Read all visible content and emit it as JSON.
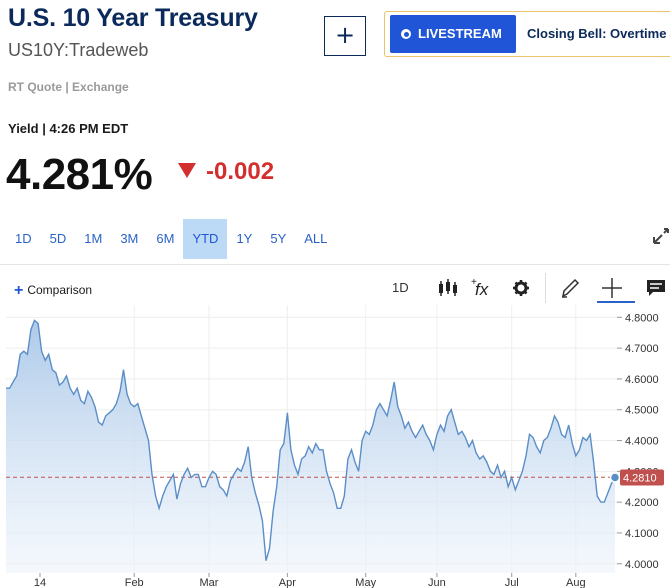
{
  "header": {
    "title": "U.S. 10 Year Treasury",
    "symbol": "US10Y:Tradeweb",
    "add_label": "+",
    "livestream_label": "LIVESTREAM",
    "livestream_show": "Closing Bell: Overtime",
    "quote_source": "RT Quote | Exchange"
  },
  "quote": {
    "yield_time": "Yield | 4:26 PM EDT",
    "price": "4.281%",
    "change": "-0.002",
    "change_color": "#d32f2f"
  },
  "ranges": [
    "1D",
    "5D",
    "1M",
    "3M",
    "6M",
    "YTD",
    "1Y",
    "5Y",
    "ALL"
  ],
  "active_range": "YTD",
  "toolbar": {
    "comparison_label": "Comparison",
    "interval_label": "1D"
  },
  "colors": {
    "accent": "#1f55d6",
    "line": "#5b8ec7",
    "fill": "#c9dcef",
    "ref_line": "#c0504d"
  },
  "chart_data": {
    "type": "area",
    "x_labels": [
      "14",
      "Feb",
      "Mar",
      "Apr",
      "May",
      "Jun",
      "Jul",
      "Aug"
    ],
    "y_ticks": [
      "4.8000",
      "4.7000",
      "4.6000",
      "4.5000",
      "4.4000",
      "4.3000",
      "4.2000",
      "4.1000",
      "4.0000"
    ],
    "ylim": [
      3.97,
      4.84
    ],
    "ref_value": 4.281,
    "current_label": "4.2810",
    "series": [
      {
        "values": [
          4.57,
          4.57,
          4.59,
          4.61,
          4.68,
          4.69,
          4.68,
          4.76,
          4.79,
          4.78,
          4.69,
          4.66,
          4.68,
          4.63,
          4.62,
          4.58,
          4.59,
          4.61,
          4.57,
          4.55,
          4.57,
          4.53,
          4.52,
          4.56,
          4.54,
          4.51,
          4.46,
          4.45,
          4.48,
          4.49,
          4.5,
          4.52,
          4.56,
          4.63,
          4.55,
          4.52,
          4.51,
          4.52,
          4.48,
          4.44,
          4.4,
          4.29,
          4.22,
          4.18,
          4.22,
          4.25,
          4.27,
          4.29,
          4.21,
          4.26,
          4.29,
          4.31,
          4.28,
          4.29,
          4.29,
          4.25,
          4.25,
          4.28,
          4.3,
          4.29,
          4.25,
          4.24,
          4.22,
          4.27,
          4.29,
          4.31,
          4.3,
          4.33,
          4.38,
          4.28,
          4.23,
          4.19,
          4.14,
          4.01,
          4.05,
          4.17,
          4.25,
          4.37,
          4.39,
          4.49,
          4.37,
          4.32,
          4.29,
          4.34,
          4.35,
          4.38,
          4.36,
          4.39,
          4.37,
          4.37,
          4.3,
          4.26,
          4.23,
          4.18,
          4.18,
          4.22,
          4.34,
          4.37,
          4.33,
          4.3,
          4.4,
          4.43,
          4.42,
          4.45,
          4.5,
          4.52,
          4.5,
          4.48,
          4.53,
          4.59,
          4.51,
          4.48,
          4.44,
          4.46,
          4.43,
          4.41,
          4.43,
          4.45,
          4.42,
          4.4,
          4.37,
          4.42,
          4.45,
          4.43,
          4.48,
          4.5,
          4.46,
          4.42,
          4.43,
          4.41,
          4.38,
          4.4,
          4.36,
          4.34,
          4.35,
          4.33,
          4.3,
          4.29,
          4.32,
          4.28,
          4.3,
          4.25,
          4.28,
          4.24,
          4.27,
          4.3,
          4.35,
          4.42,
          4.41,
          4.38,
          4.36,
          4.4,
          4.41,
          4.44,
          4.48,
          4.46,
          4.42,
          4.41,
          4.45,
          4.39,
          4.35,
          4.37,
          4.41,
          4.4,
          4.42,
          4.33,
          4.22,
          4.2,
          4.2,
          4.23,
          4.26,
          4.28
        ]
      }
    ]
  }
}
